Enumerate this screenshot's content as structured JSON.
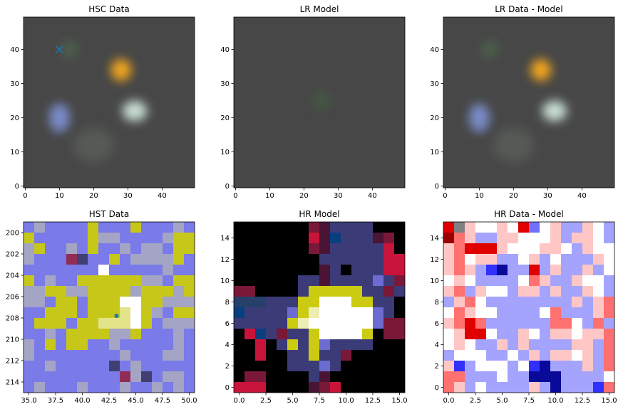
{
  "figure": {
    "panels": [
      {
        "id": "hsc_data",
        "title": "HSC Data",
        "kind": "rgb",
        "xticks": [
          0,
          10,
          20,
          30,
          40
        ],
        "yticks": [
          0,
          10,
          20,
          30,
          40
        ],
        "xlim": [
          -0.5,
          49.5
        ],
        "ylim": [
          49.5,
          -0.5
        ],
        "blobs": [
          {
            "x": 10,
            "y": 20,
            "sx": 3.0,
            "sy": 4.2,
            "color": "#7c8fd0",
            "a": 0.95
          },
          {
            "x": 32,
            "y": 22,
            "sx": 3.6,
            "sy": 3.0,
            "color": "#cfe6d9",
            "a": 0.95
          },
          {
            "x": 28,
            "y": 34,
            "sx": 3.0,
            "sy": 3.2,
            "color": "#f0a51c",
            "a": 1.0
          },
          {
            "x": 20,
            "y": 12,
            "sx": 6,
            "sy": 5,
            "color": "#6d7a6e",
            "a": 0.35
          },
          {
            "x": 13,
            "y": 40,
            "sx": 2.5,
            "sy": 2.5,
            "color": "#4f7a4c",
            "a": 0.5
          }
        ],
        "marker": {
          "x": 10,
          "y": 40,
          "symbol": "x",
          "color": "#1f77b4"
        }
      },
      {
        "id": "lr_model",
        "title": "LR Model",
        "kind": "rgb",
        "xticks": [
          0,
          10,
          20,
          30,
          40
        ],
        "yticks": [
          0,
          10,
          20,
          30,
          40
        ],
        "xlim": [
          -0.5,
          49.5
        ],
        "ylim": [
          49.5,
          -0.5
        ],
        "blobs": [
          {
            "x": 25,
            "y": 25,
            "sx": 2.2,
            "sy": 2.2,
            "color": "#3f6b3e",
            "a": 0.6
          }
        ]
      },
      {
        "id": "lr_residual",
        "title": "LR Data - Model",
        "kind": "rgb",
        "xticks": [
          0,
          10,
          20,
          30,
          40
        ],
        "yticks": [
          0,
          10,
          20,
          30,
          40
        ],
        "xlim": [
          -0.5,
          49.5
        ],
        "ylim": [
          49.5,
          -0.5
        ],
        "blobs": [
          {
            "x": 10,
            "y": 20,
            "sx": 3.0,
            "sy": 4.2,
            "color": "#7c8fd0",
            "a": 0.95
          },
          {
            "x": 32,
            "y": 22,
            "sx": 3.6,
            "sy": 3.0,
            "color": "#cfe6d9",
            "a": 0.95
          },
          {
            "x": 28,
            "y": 34,
            "sx": 3.0,
            "sy": 3.2,
            "color": "#f0a51c",
            "a": 1.0
          },
          {
            "x": 20,
            "y": 12,
            "sx": 6,
            "sy": 5,
            "color": "#6d7a6e",
            "a": 0.35
          },
          {
            "x": 13,
            "y": 40,
            "sx": 2.5,
            "sy": 2.5,
            "color": "#4f7a4c",
            "a": 0.5
          }
        ]
      },
      {
        "id": "hst_data",
        "title": "HST Data",
        "kind": "grid",
        "palette": "hst",
        "xticks": [
          "35.0",
          "37.5",
          "40.0",
          "42.5",
          "45.0",
          "47.5",
          "50.0"
        ],
        "yticks": [
          "214",
          "212",
          "210",
          "208",
          "206",
          "204",
          "202",
          "200"
        ],
        "xlim": [
          34.5,
          50.5
        ],
        "ylim": [
          199,
          215
        ],
        "marker": {
          "x": 43.2,
          "y": 207.8,
          "symbol": "o",
          "color": "#1f77b4"
        }
      },
      {
        "id": "hr_model",
        "title": "HR Model",
        "kind": "grid",
        "palette": "hr",
        "xticks": [
          "0.0",
          "2.5",
          "5.0",
          "7.5",
          "10.0",
          "12.5",
          "15.0"
        ],
        "yticks": [
          "0",
          "2",
          "4",
          "6",
          "8",
          "10",
          "12",
          "14"
        ],
        "xlim": [
          -0.5,
          15.5
        ],
        "ylim": [
          15.5,
          -0.5
        ]
      },
      {
        "id": "hr_residual",
        "title": "HR Data - Model",
        "kind": "grid",
        "palette": "res",
        "xticks": [
          "0.0",
          "2.5",
          "5.0",
          "7.5",
          "10.0",
          "12.5",
          "15.0"
        ],
        "yticks": [
          "0",
          "2",
          "4",
          "6",
          "8",
          "10",
          "12",
          "14"
        ],
        "xlim": [
          -0.5,
          15.5
        ],
        "ylim": [
          15.5,
          -0.5
        ]
      }
    ]
  },
  "chart_data": {
    "type": "heatmap",
    "grids": {
      "hst_data": [
        "NPNNNNYNNNYNNNPN",
        "YNNNNNYPPNNNNPYY",
        "PYNNPNYNNPNPPNYY",
        "PNNNRDNNYNPPPPYN",
        "NNNNNNNWNNNNNPNN",
        "YNPNNYYYYYYPPNYY",
        "PPYYPPYYYYPYYYPY",
        "PPNYYNYYYWWYYPPP",
        "NNYYYNYYYTWYPNYY",
        "NYYYNYYTTTWYNPPP",
        "NNPNYYYYPPYNNNPN",
        "PNYNYYNNPNNNNNPN",
        "PNNNNNNNNPNNNPPN",
        "NNPNNNNNDNPNNNNN",
        "NNNNNNNNNRPDNPPN",
        "NPNNNPNNNPNNPNPN"
      ],
      "hr_model": [
        "0000000MLNNNN000",
        "0000000RLBNNNLM0",
        "0000000MLNNNNNR0",
        "00000000NNNNNNRR",
        "00000000LN0NNNRR",
        "000000NNLNNNNPNM",
        "MM0000NYYYYYNNMN",
        "SSSNNNYYWWWYYNN0",
        "BNNNNPYTWWWWWPN0",
        "NNNNNYTWWWWWWPMM",
        "0RBNMNNYWWWWY0MM",
        "00R0NYNYPNNNN000",
        "00R00NNYNNM00000",
        "00000NNNPN000000",
        "0MM0000NL0000000",
        "RRR0000LMR000000"
      ],
      "hr_residual": [
        "RWpwwpwRPwpbbpwb",
        "Mrpbbppwwwpbppwb",
        "prRRRpwwwppwbpww",
        "prwppbbwpbwbbbpw",
        "prpbBDbbRbpbbpbw",
        "wpwbbbbwrpbbpwwb",
        "prbpwwbppbpbbpwb",
        "bprwbbbbbbbbpbpr",
        "wrpwwbbbbwrbbbpr",
        "prRrbbbbbbrrwbrb",
        "wpRRwbbpwbppwppr",
        "wpwbbpbpbbbbppbr",
        "bwwwbbwbpbppwpbr",
        "pBbwwwbwBDbbbpbr",
        "rrbbbwbbDDDbbbbw",
        "rpbwbbbbpbDbbbBr"
      ]
    },
    "palettes": {
      "hst": {
        "N": "#7a7ae8",
        "P": "#a4a4c4",
        "Y": "#c7c71a",
        "T": "#e3e38a",
        "W": "#ffffff",
        "D": "#3f3f72",
        "B": "#1a3f75",
        "R": "#902c55"
      },
      "hr": {
        "0": "#000000",
        "N": "#3b3b78",
        "D": "#2a2a5c",
        "P": "#6b6bd2",
        "Y": "#cbcb12",
        "T": "#eeeeb4",
        "W": "#ffffff",
        "R": "#c8143a",
        "M": "#7a1838",
        "L": "#4a1535",
        "B": "#0a3f7f",
        "S": "#27406a"
      },
      "res": {
        "w": "#ffffff",
        "p": "#ffc6c6",
        "r": "#ff7070",
        "R": "#e00000",
        "M": "#990000",
        "b": "#a4a4ff",
        "B": "#3030ff",
        "D": "#0a0a9a",
        "P": "#7070ff"
      }
    }
  }
}
